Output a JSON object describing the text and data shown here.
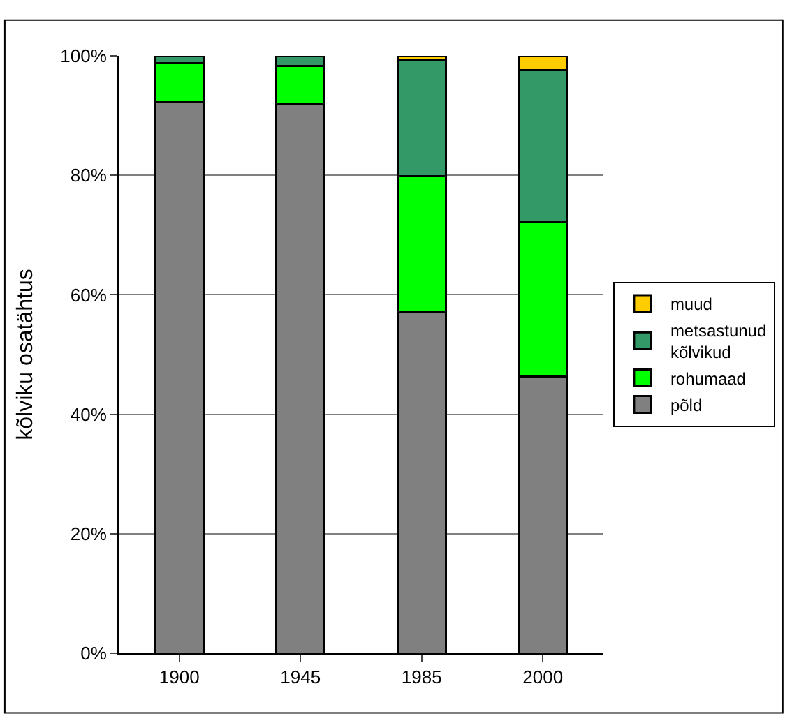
{
  "chart_data": {
    "type": "bar",
    "stacked": true,
    "ylabel": "kõlviku osatähtus",
    "categories": [
      "1900",
      "1945",
      "1985",
      "2000"
    ],
    "series": [
      {
        "name": "põld",
        "color": "#808080",
        "values": [
          92.2,
          91.9,
          57.2,
          46.3
        ]
      },
      {
        "name": "rohumaad",
        "color": "#00ff00",
        "values": [
          6.6,
          6.4,
          22.7,
          25.9
        ]
      },
      {
        "name": "metsastunud kõlvikud",
        "color": "#339966",
        "values": [
          1.2,
          1.7,
          19.5,
          25.4
        ]
      },
      {
        "name": "muud",
        "color": "#ffcc00",
        "values": [
          null,
          null,
          0.6,
          2.4
        ]
      }
    ],
    "ylim": [
      0,
      100
    ],
    "yticks": [
      {
        "value": 0,
        "label": "0%"
      },
      {
        "value": 20,
        "label": "20%"
      },
      {
        "value": 40,
        "label": "40%"
      },
      {
        "value": 60,
        "label": "60%"
      },
      {
        "value": 80,
        "label": "80%"
      },
      {
        "value": 100,
        "label": "100%"
      }
    ],
    "grid": "y",
    "legend": "right"
  }
}
